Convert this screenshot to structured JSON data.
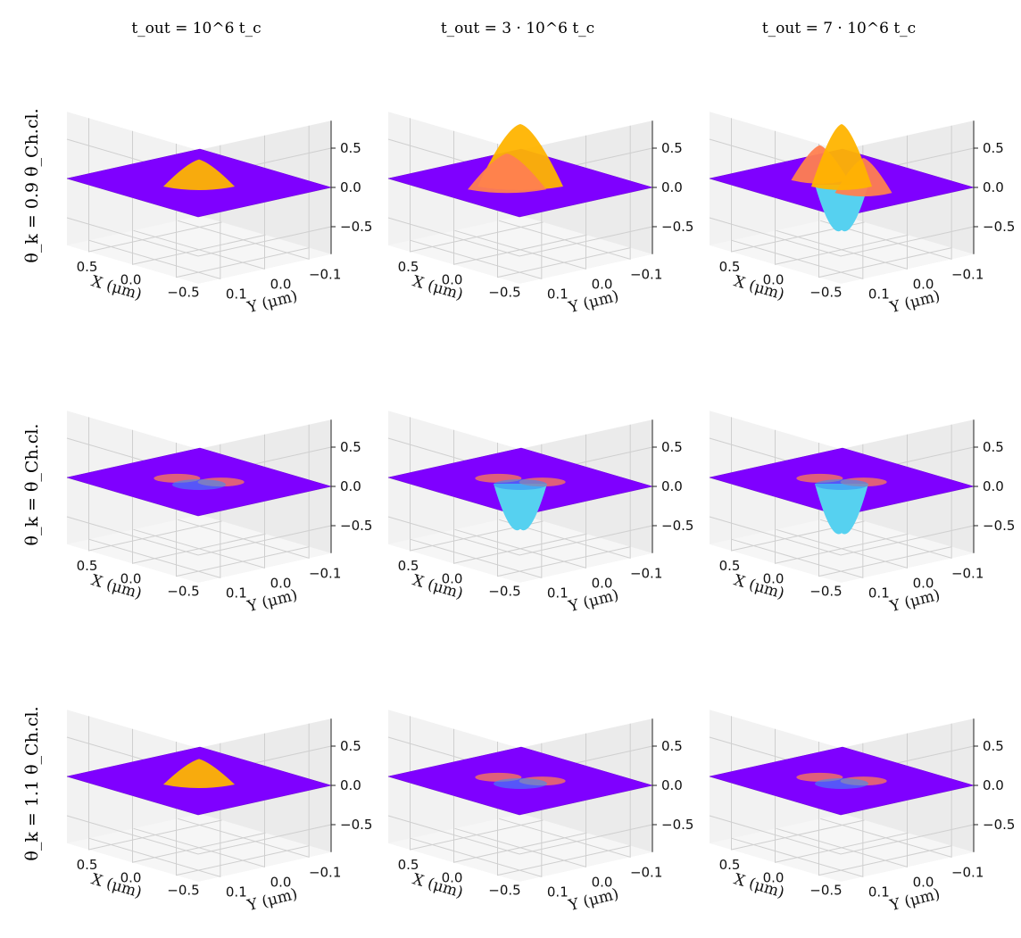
{
  "chart_data": {
    "type": "surface3d",
    "columns": [
      {
        "label": "t_out = 10^6 t_c"
      },
      {
        "label": "t_out = 3 · 10^6 t_c"
      },
      {
        "label": "t_out = 7 · 10^6 t_c"
      }
    ],
    "rows": [
      {
        "label": "θ_k = 0.9 θ_Ch.cl."
      },
      {
        "label": "θ_k = θ_Ch.cl."
      },
      {
        "label": "θ_k = 1.1 θ_Ch.cl."
      }
    ],
    "axes": {
      "xlabel": "X (μm)",
      "ylabel": "Y (μm)",
      "x_ticks": [
        "0.5",
        "0.0",
        "−0.5"
      ],
      "y_ticks": [
        "0.1",
        "0.0",
        "−0.1"
      ],
      "z_ticks": [
        "0.5",
        "0.0",
        "−0.5"
      ],
      "xlim": [
        -0.75,
        0.75
      ],
      "ylim": [
        -0.15,
        0.15
      ],
      "zlim": [
        -0.85,
        0.85
      ]
    },
    "colormap": [
      "#7f00ff",
      "#3a8ff5",
      "#56d1f0",
      "#ff7f50",
      "#ffb400"
    ],
    "panels": [
      {
        "row": 0,
        "col": 0,
        "peak_max": 0.3,
        "peak_min": 0.0
      },
      {
        "row": 0,
        "col": 1,
        "peak_max": 0.75,
        "peak_min": -0.08
      },
      {
        "row": 0,
        "col": 2,
        "peak_max": 0.75,
        "peak_min": -0.6
      },
      {
        "row": 1,
        "col": 0,
        "peak_max": 0.05,
        "peak_min": -0.1
      },
      {
        "row": 1,
        "col": 1,
        "peak_max": 0.1,
        "peak_min": -0.6
      },
      {
        "row": 1,
        "col": 2,
        "peak_max": 0.1,
        "peak_min": -0.65
      },
      {
        "row": 2,
        "col": 0,
        "peak_max": 0.28,
        "peak_min": 0.0
      },
      {
        "row": 2,
        "col": 1,
        "peak_max": 0.05,
        "peak_min": -0.08
      },
      {
        "row": 2,
        "col": 2,
        "peak_max": 0.05,
        "peak_min": -0.05
      }
    ]
  }
}
